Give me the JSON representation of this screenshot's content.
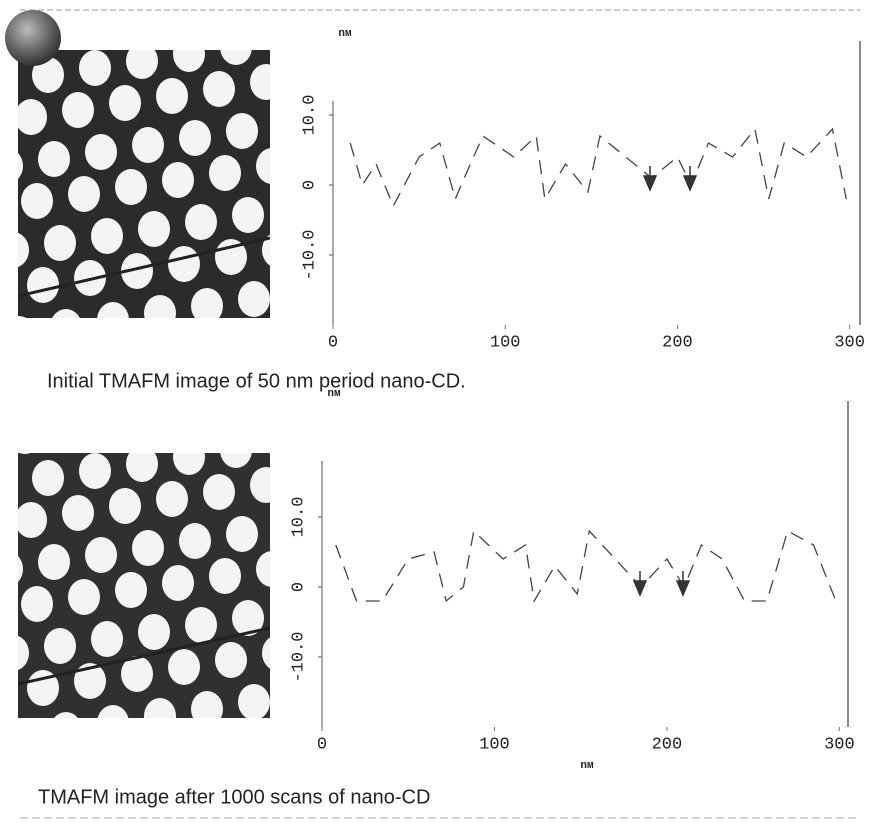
{
  "chart_data": [
    {
      "type": "line",
      "y_label": "nм",
      "xlim": [
        0,
        306
      ],
      "ylim": [
        -20,
        12
      ],
      "xticks": [
        0,
        100,
        200,
        300
      ],
      "yticks": [
        {
          "value": 10,
          "label": "10.0"
        },
        0,
        {
          "value": -10,
          "label": "-10.0"
        }
      ],
      "series": [
        {
          "color": "#444444",
          "x": [
            10,
            17,
            25,
            35,
            50,
            62,
            71,
            78,
            87,
            105,
            118,
            123,
            135,
            148,
            155,
            170,
            185,
            200,
            208,
            218,
            232,
            245,
            253,
            262,
            275,
            290,
            298
          ],
          "values": [
            6,
            0,
            3,
            -3,
            4,
            6,
            -2,
            2,
            7,
            4,
            7,
            -2,
            3,
            -1,
            7,
            4,
            1,
            4,
            0,
            6,
            4,
            8,
            -2,
            6,
            4,
            8,
            -2
          ]
        }
      ],
      "caption": "Initial TMAFM image of 50 nm period nano-CD."
    },
    {
      "type": "line",
      "y_label": "nм",
      "x_label": "nм",
      "xlim": [
        0,
        305
      ],
      "ylim": [
        -20,
        18
      ],
      "xticks": [
        0,
        100,
        200,
        300
      ],
      "yticks": [
        {
          "value": 10,
          "label": "10.0"
        },
        0,
        {
          "value": -10,
          "label": "-10.0"
        }
      ],
      "series": [
        {
          "color": "#444444",
          "x": [
            8,
            20,
            35,
            50,
            65,
            72,
            82,
            88,
            105,
            118,
            123,
            135,
            148,
            155,
            170,
            185,
            200,
            210,
            220,
            232,
            245,
            258,
            270,
            285,
            298
          ],
          "values": [
            6,
            -2,
            -2,
            4,
            5,
            -2,
            0,
            8,
            4,
            6,
            -2,
            3,
            -1,
            8,
            4,
            0,
            4,
            0,
            6,
            4,
            -2,
            -2,
            8,
            6,
            -2
          ]
        }
      ],
      "caption": "TMAFM image after 1000 scans of nano-CD"
    }
  ]
}
